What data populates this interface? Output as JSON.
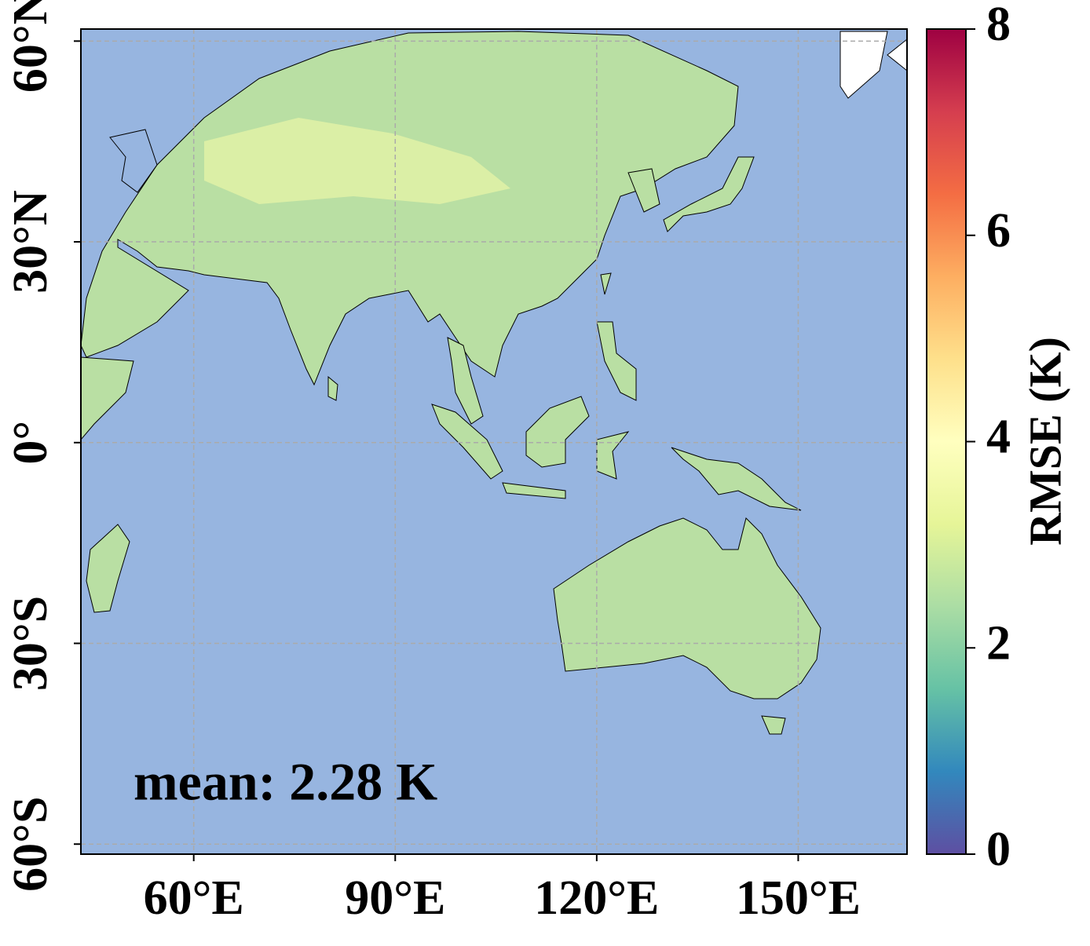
{
  "chart_data": {
    "type": "map",
    "annotation": "mean: 2.28 K",
    "xlim": [
      43.2,
      166.2
    ],
    "ylim": [
      -61.5,
      61.8
    ],
    "xticks": [
      {
        "value": 60,
        "label": "60°E"
      },
      {
        "value": 90,
        "label": "90°E"
      },
      {
        "value": 120,
        "label": "120°E"
      },
      {
        "value": 150,
        "label": "150°E"
      }
    ],
    "yticks": [
      {
        "value": 60,
        "label": "60°N"
      },
      {
        "value": 30,
        "label": "30°N"
      },
      {
        "value": 0,
        "label": "0°"
      },
      {
        "value": -30,
        "label": "30°S"
      },
      {
        "value": -60,
        "label": "60°S"
      }
    ],
    "grid": true,
    "ocean_color": "#97b5e0",
    "colorbar": {
      "label": "RMSE (K)",
      "clim": [
        0,
        8
      ],
      "ticks": [
        0,
        2,
        4,
        6,
        8
      ],
      "colors": [
        "#5e4fa2",
        "#3288bd",
        "#66c2a5",
        "#abdda4",
        "#e6f598",
        "#ffffbf",
        "#fee08b",
        "#fdae61",
        "#f46d43",
        "#d53e4f",
        "#9e0142"
      ]
    }
  }
}
